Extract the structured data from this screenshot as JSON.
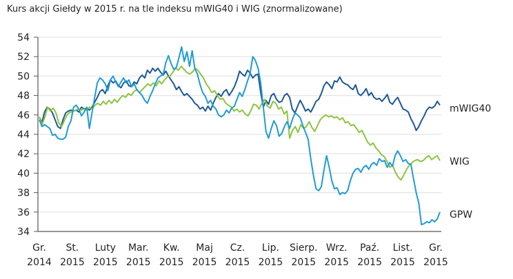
{
  "title": "Kurs akcji Giełdy w 2015 r. na tle indeksu mWIG40 i WIG (znormalizowane)",
  "colors": {
    "mWIG40": "#1b5796",
    "WIG": "#8cc43f",
    "GPW": "#1e9bd7",
    "grid": "#e4e4e4",
    "axis": "#555555"
  },
  "chart_data": {
    "type": "line",
    "title": "Kurs akcji Giełdy w 2015 r. na tle indeksu mWIG40 i WIG (znormalizowane)",
    "xlabel": "",
    "ylabel": "",
    "ylim": [
      34,
      54
    ],
    "yticks": [
      34,
      36,
      38,
      40,
      42,
      44,
      46,
      48,
      50,
      52,
      54
    ],
    "grid": true,
    "legend_position": "right (end-of-line labels)",
    "x_ticks": [
      {
        "month": "Gr.",
        "year": "2014"
      },
      {
        "month": "St.",
        "year": "2015"
      },
      {
        "month": "Luty",
        "year": "2015"
      },
      {
        "month": "Mar.",
        "year": "2015"
      },
      {
        "month": "Kw.",
        "year": "2015"
      },
      {
        "month": "Maj",
        "year": "2015"
      },
      {
        "month": "Cz.",
        "year": "2015"
      },
      {
        "month": "Lip.",
        "year": "2015"
      },
      {
        "month": "Sierp.",
        "year": "2015"
      },
      {
        "month": "Wrz.",
        "year": "2015"
      },
      {
        "month": "Paź.",
        "year": "2015"
      },
      {
        "month": "List.",
        "year": "2015"
      },
      {
        "month": "Gr.",
        "year": "2015"
      }
    ],
    "series": [
      {
        "name": "mWIG40",
        "values": [
          45.8,
          45.2,
          46.3,
          46.8,
          46.6,
          46.2,
          45.5,
          44.8,
          44.6,
          45.5,
          46.2,
          46.4,
          46.5,
          46.4,
          46.5,
          46.3,
          46.8,
          46.6,
          46.7,
          46.5,
          46.8,
          47.3,
          47.8,
          48.4,
          48.6,
          48.2,
          49.0,
          49.6,
          49.3,
          49.5,
          49.0,
          48.8,
          49.3,
          49.5,
          49.0,
          48.9,
          49.4,
          49.2,
          49.8,
          50.1,
          49.8,
          50.6,
          50.3,
          50.8,
          50.5,
          50.8,
          50.4,
          50.1,
          50.5,
          50.0,
          49.6,
          49.2,
          48.6,
          48.9,
          48.4,
          48.0,
          48.2,
          47.9,
          47.6,
          47.2,
          47.0,
          46.6,
          46.8,
          46.4,
          46.9,
          46.5,
          47.2,
          47.8,
          48.2,
          47.9,
          48.4,
          48.6,
          48.0,
          48.4,
          48.9,
          49.6,
          50.5,
          50.2,
          50.0,
          50.6,
          50.3,
          49.8,
          50.1,
          50.2,
          48.3,
          46.8,
          47.5,
          47.1,
          48.0,
          48.2,
          47.6,
          47.3,
          47.4,
          48.0,
          48.2,
          47.8,
          46.6,
          46.2,
          46.9,
          47.5,
          47.0,
          46.4,
          46.6,
          46.3,
          46.8,
          47.4,
          47.6,
          48.2,
          49.0,
          49.4,
          49.1,
          48.7,
          49.5,
          49.4,
          49.9,
          49.4,
          49.2,
          49.1,
          48.8,
          48.6,
          49.1,
          48.2,
          48.0,
          48.3,
          48.7,
          48.0,
          48.3,
          47.8,
          47.6,
          47.7,
          47.4,
          47.7,
          48.1,
          47.3,
          47.1,
          47.5,
          47.8,
          47.2,
          46.6,
          46.5,
          46.3,
          45.6,
          45.1,
          44.4,
          44.8,
          45.4,
          45.9,
          46.5,
          46.8,
          46.7,
          46.9,
          47.4,
          47.0
        ],
        "end_label": "mWIG40"
      },
      {
        "name": "WIG",
        "values": [
          45.8,
          45.0,
          45.8,
          46.8,
          46.4,
          46.7,
          46.2,
          45.2,
          44.8,
          45.4,
          46.0,
          46.3,
          46.3,
          46.5,
          46.6,
          46.5,
          46.6,
          46.5,
          46.8,
          46.6,
          47.0,
          47.2,
          47.0,
          47.4,
          47.1,
          47.5,
          47.2,
          47.6,
          47.3,
          47.7,
          48.0,
          47.8,
          48.2,
          48.0,
          48.4,
          48.6,
          48.3,
          48.6,
          48.9,
          49.2,
          49.0,
          49.3,
          49.0,
          49.5,
          49.2,
          49.6,
          49.9,
          50.0,
          50.4,
          50.8,
          50.6,
          51.0,
          50.7,
          50.4,
          50.2,
          50.4,
          50.8,
          50.6,
          50.2,
          49.8,
          49.2,
          48.8,
          48.3,
          48.5,
          48.0,
          47.6,
          47.7,
          47.2,
          47.0,
          46.8,
          46.4,
          46.6,
          46.3,
          46.5,
          46.1,
          45.9,
          46.4,
          47.1,
          47.0,
          46.6,
          47.2,
          47.6,
          46.9,
          46.7,
          47.4,
          47.2,
          46.6,
          46.8,
          46.1,
          46.4,
          43.6,
          44.4,
          44.8,
          44.2,
          45.0,
          44.6,
          44.8,
          45.3,
          44.7,
          44.3,
          44.9,
          45.5,
          45.8,
          46.0,
          45.8,
          45.9,
          45.7,
          45.8,
          45.5,
          45.7,
          45.2,
          45.3,
          44.9,
          45.0,
          44.6,
          44.2,
          44.4,
          43.8,
          43.2,
          42.9,
          43.1,
          42.6,
          42.3,
          41.9,
          41.7,
          41.2,
          40.6,
          40.8,
          40.1,
          39.6,
          39.3,
          39.8,
          40.4,
          40.8,
          41.1,
          41.3,
          41.4,
          41.2,
          41.3,
          41.6,
          41.8,
          41.4,
          41.6,
          41.8,
          41.3
        ],
        "end_label": "WIG"
      },
      {
        "name": "GPW",
        "values": [
          45.5,
          44.8,
          45.0,
          44.8,
          44.6,
          43.9,
          44.0,
          43.6,
          43.5,
          43.5,
          43.7,
          44.8,
          45.4,
          46.8,
          47.0,
          46.6,
          45.9,
          46.3,
          46.8,
          44.6,
          46.2,
          47.8,
          49.3,
          49.8,
          49.6,
          49.2,
          48.5,
          49.6,
          50.0,
          49.4,
          48.9,
          49.4,
          49.8,
          49.3,
          49.6,
          48.9,
          49.2,
          48.6,
          48.3,
          48.0,
          47.5,
          47.2,
          47.9,
          48.5,
          49.2,
          49.8,
          50.0,
          50.2,
          51.4,
          52.1,
          51.3,
          50.7,
          50.9,
          51.9,
          53.0,
          51.5,
          52.5,
          51.0,
          52.6,
          50.8,
          50.2,
          49.1,
          48.3,
          47.9,
          47.2,
          47.5,
          46.9,
          46.6,
          46.0,
          45.8,
          46.0,
          46.5,
          46.2,
          46.7,
          46.9,
          47.6,
          48.3,
          47.9,
          48.6,
          49.5,
          50.3,
          52.0,
          51.6,
          50.8,
          49.3,
          46.8,
          44.3,
          43.6,
          44.6,
          45.4,
          44.9,
          43.8,
          44.1,
          44.8,
          45.3,
          44.6,
          45.5,
          46.2,
          46.0,
          45.7,
          44.9,
          44.2,
          43.5,
          41.5,
          39.8,
          38.4,
          38.2,
          38.6,
          40.3,
          41.8,
          40.6,
          39.2,
          38.4,
          38.5,
          37.8,
          38.0,
          37.9,
          38.2,
          39.2,
          40.0,
          40.4,
          40.5,
          40.1,
          40.6,
          40.8,
          40.4,
          40.9,
          41.1,
          40.8,
          41.5,
          41.2,
          41.3,
          40.6,
          41.1,
          40.7,
          41.8,
          42.3,
          41.8,
          41.2,
          41.4,
          41.0,
          40.9,
          39.4,
          38.0,
          36.9,
          34.7,
          34.8,
          35.0,
          34.9,
          35.2,
          35.0,
          35.3,
          36.0
        ],
        "end_label": "GPW"
      }
    ]
  }
}
